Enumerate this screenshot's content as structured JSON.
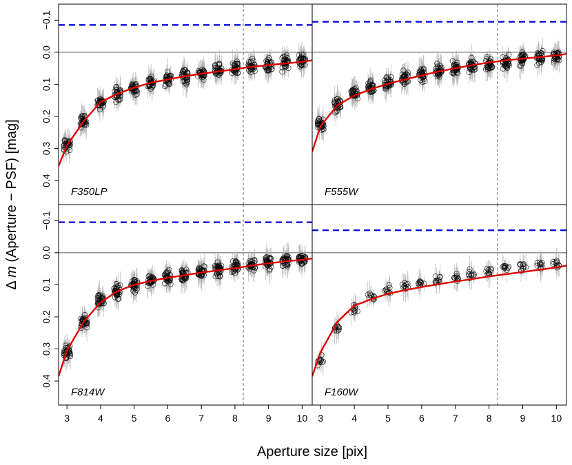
{
  "chart_data": {
    "type": "scatter",
    "layout": "2x2 panels, shared axes",
    "xlabel": "Aperture size [pix]",
    "ylabel_prefix": "Δ ",
    "ylabel_var": "m",
    "ylabel_suffix": " (Aperture − PSF) [mag]",
    "xlim": [
      2.75,
      10.3
    ],
    "ylim": [
      0.475,
      -0.15
    ],
    "y_inverted": true,
    "x_ticks": [
      "3",
      "4",
      "5",
      "6",
      "7",
      "8",
      "9",
      "10"
    ],
    "y_ticks": [
      "−0.1",
      "0.0",
      "0.1",
      "0.2",
      "0.3",
      "0.4"
    ],
    "y_tick_values": [
      -0.1,
      0.0,
      0.1,
      0.2,
      0.3,
      0.4
    ],
    "zero_line": 0.0,
    "vertical_reference_x": 8.25,
    "colors": {
      "points": "#000000",
      "error_bars": "#aaaaaa",
      "model_curve": "#e00000",
      "reference_line": "#0000dd",
      "zero_line": "#555555",
      "vertical_line": "#777777"
    },
    "panels": [
      {
        "label": "F350LP",
        "reference_level": -0.085,
        "scatter_amplitude": 0.03,
        "point_density": 28,
        "curve_x": [
          2.75,
          3,
          3.5,
          4,
          4.5,
          5,
          5.5,
          6,
          6.5,
          7,
          7.5,
          8,
          8.5,
          9,
          9.5,
          10,
          10.3
        ],
        "curve_y": [
          0.355,
          0.29,
          0.215,
          0.155,
          0.13,
          0.11,
          0.095,
          0.085,
          0.075,
          0.067,
          0.06,
          0.053,
          0.045,
          0.04,
          0.035,
          0.03,
          0.025
        ],
        "points_x": [
          3,
          3.5,
          4,
          4.5,
          5,
          5.5,
          6,
          6.5,
          7,
          7.5,
          8,
          8.5,
          9,
          9.5,
          10
        ],
        "points_y": [
          0.29,
          0.215,
          0.16,
          0.13,
          0.11,
          0.095,
          0.085,
          0.075,
          0.065,
          0.058,
          0.05,
          0.043,
          0.038,
          0.033,
          0.028
        ]
      },
      {
        "label": "F555W",
        "reference_level": -0.095,
        "scatter_amplitude": 0.03,
        "point_density": 28,
        "curve_x": [
          2.75,
          3,
          3.5,
          4,
          4.5,
          5,
          5.5,
          6,
          6.5,
          7,
          7.5,
          8,
          8.5,
          9,
          9.5,
          10,
          10.3
        ],
        "curve_y": [
          0.31,
          0.23,
          0.165,
          0.135,
          0.115,
          0.098,
          0.085,
          0.072,
          0.06,
          0.05,
          0.04,
          0.032,
          0.025,
          0.02,
          0.015,
          0.01,
          0.005
        ],
        "points_x": [
          3,
          3.5,
          4,
          4.5,
          5,
          5.5,
          6,
          6.5,
          7,
          7.5,
          8,
          8.5,
          9,
          9.5,
          10
        ],
        "points_y": [
          0.225,
          0.165,
          0.13,
          0.11,
          0.095,
          0.08,
          0.07,
          0.06,
          0.05,
          0.042,
          0.035,
          0.028,
          0.022,
          0.018,
          0.015
        ]
      },
      {
        "label": "F814W",
        "reference_level": -0.095,
        "scatter_amplitude": 0.028,
        "point_density": 30,
        "curve_x": [
          2.75,
          3,
          3.5,
          4,
          4.5,
          5,
          5.5,
          6,
          6.5,
          7,
          7.5,
          8,
          8.5,
          9,
          9.5,
          10,
          10.3
        ],
        "curve_y": [
          0.385,
          0.305,
          0.215,
          0.155,
          0.12,
          0.1,
          0.088,
          0.078,
          0.07,
          0.062,
          0.055,
          0.048,
          0.04,
          0.033,
          0.027,
          0.022,
          0.018
        ],
        "points_x": [
          3,
          3.5,
          4,
          4.5,
          5,
          5.5,
          6,
          6.5,
          7,
          7.5,
          8,
          8.5,
          9,
          9.5,
          10
        ],
        "points_y": [
          0.31,
          0.215,
          0.15,
          0.12,
          0.1,
          0.088,
          0.077,
          0.068,
          0.06,
          0.052,
          0.045,
          0.038,
          0.032,
          0.027,
          0.022
        ]
      },
      {
        "label": "F160W",
        "reference_level": -0.07,
        "scatter_amplitude": 0.02,
        "point_density": 10,
        "curve_x": [
          2.75,
          3,
          3.5,
          4,
          4.5,
          5,
          5.5,
          6,
          6.5,
          7,
          7.5,
          8,
          8.5,
          9,
          9.5,
          10,
          10.3
        ],
        "curve_y": [
          0.385,
          0.31,
          0.215,
          0.165,
          0.145,
          0.128,
          0.117,
          0.107,
          0.098,
          0.09,
          0.082,
          0.074,
          0.067,
          0.06,
          0.053,
          0.046,
          0.04
        ],
        "points_x": [
          3,
          3.5,
          4,
          4.5,
          5,
          5.5,
          6,
          6.5,
          7,
          7.5,
          8,
          8.5,
          9,
          9.5,
          10
        ],
        "points_y": [
          0.335,
          0.235,
          0.175,
          0.14,
          0.115,
          0.105,
          0.095,
          0.085,
          0.075,
          0.068,
          0.06,
          0.05,
          0.042,
          0.037,
          0.035
        ]
      }
    ]
  }
}
